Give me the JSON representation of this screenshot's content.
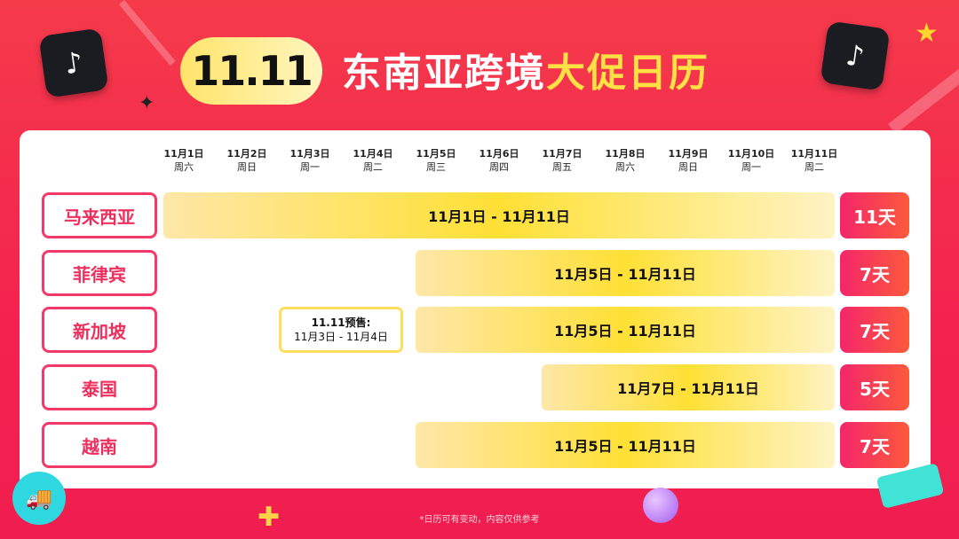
{
  "header": {
    "badge": "11.11",
    "title_main": "东南亚跨境",
    "title_highlight": "大促日历"
  },
  "columns": [
    {
      "date": "11月1日",
      "weekday": "周六"
    },
    {
      "date": "11月2日",
      "weekday": "周日"
    },
    {
      "date": "11月3日",
      "weekday": "周一"
    },
    {
      "date": "11月4日",
      "weekday": "周二"
    },
    {
      "date": "11月5日",
      "weekday": "周三"
    },
    {
      "date": "11月6日",
      "weekday": "周四"
    },
    {
      "date": "11月7日",
      "weekday": "周五"
    },
    {
      "date": "11月8日",
      "weekday": "周六"
    },
    {
      "date": "11月9日",
      "weekday": "周日"
    },
    {
      "date": "11月10日",
      "weekday": "周一"
    },
    {
      "date": "11月11日",
      "weekday": "周二"
    }
  ],
  "rows": [
    {
      "country": "马来西亚",
      "range": "11月1日 - 11月11日",
      "start_day": 1,
      "end_day": 11,
      "days": "11天"
    },
    {
      "country": "菲律宾",
      "range": "11月5日 - 11月11日",
      "start_day": 5,
      "end_day": 11,
      "days": "7天"
    },
    {
      "country": "新加坡",
      "range": "11月5日 - 11月11日",
      "start_day": 5,
      "end_day": 11,
      "days": "7天"
    },
    {
      "country": "泰国",
      "range": "11月7日 - 11月11日",
      "start_day": 7,
      "end_day": 11,
      "days": "5天"
    },
    {
      "country": "越南",
      "range": "11月5日 - 11月11日",
      "start_day": 5,
      "end_day": 11,
      "days": "7天"
    }
  ],
  "presale": {
    "title": "11.11预售:",
    "range": "11月3日 - 11月4日",
    "start_day": 3,
    "end_day": 4
  },
  "footer_note": "*日历可有变动，内容仅供参考",
  "colors": {
    "background": "#f3234f",
    "highlight": "#ffe146",
    "bar": "#ffe035",
    "label_border": "#f43a6a"
  }
}
